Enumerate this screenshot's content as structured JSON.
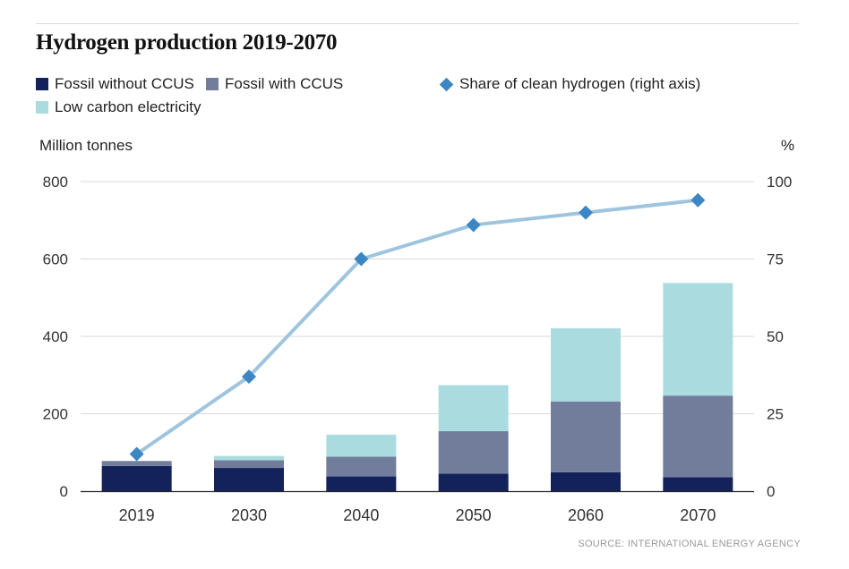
{
  "title": "Hydrogen production 2019-2070",
  "legend": {
    "fossil_no_ccus": "Fossil without CCUS",
    "fossil_ccus": "Fossil with CCUS",
    "clean_share": "Share of clean hydrogen (right axis)",
    "low_carbon": "Low carbon electricity"
  },
  "left_axis_title": "Million tonnes",
  "right_axis_title": "%",
  "source": "SOURCE: INTERNATIONAL ENERGY AGENCY",
  "colors": {
    "fossil_no_ccus": "#13225a",
    "fossil_ccus": "#727d9c",
    "low_carbon": "#aadcdf",
    "line": "#9ec4de",
    "marker": "#3d86c4",
    "grid": "#d9d9d9",
    "axis": "#222222",
    "tick_text": "#333333"
  },
  "chart_data": {
    "type": "bar",
    "stacked": true,
    "title": "Hydrogen production 2019-2070",
    "ylabel": "Million tonnes",
    "y2label": "%",
    "categories": [
      "2019",
      "2030",
      "2040",
      "2050",
      "2060",
      "2070"
    ],
    "ylim": [
      0,
      800
    ],
    "yticks": [
      0,
      200,
      400,
      600,
      800
    ],
    "y2lim": [
      0,
      100
    ],
    "y2ticks": [
      0,
      25,
      50,
      75,
      100
    ],
    "series": [
      {
        "name": "Fossil without CCUS",
        "type": "bar",
        "values": [
          65,
          60,
          38,
          45,
          49,
          36
        ]
      },
      {
        "name": "Fossil with CCUS",
        "type": "bar",
        "values": [
          13,
          20,
          51,
          110,
          183,
          211
        ]
      },
      {
        "name": "Low carbon electricity",
        "type": "bar",
        "values": [
          0,
          11,
          57,
          119,
          189,
          291
        ]
      },
      {
        "name": "Share of clean hydrogen (right axis)",
        "type": "line",
        "axis": "right",
        "values": [
          12,
          37,
          75,
          86,
          90,
          94
        ]
      }
    ],
    "grid": true,
    "legend": "top"
  }
}
